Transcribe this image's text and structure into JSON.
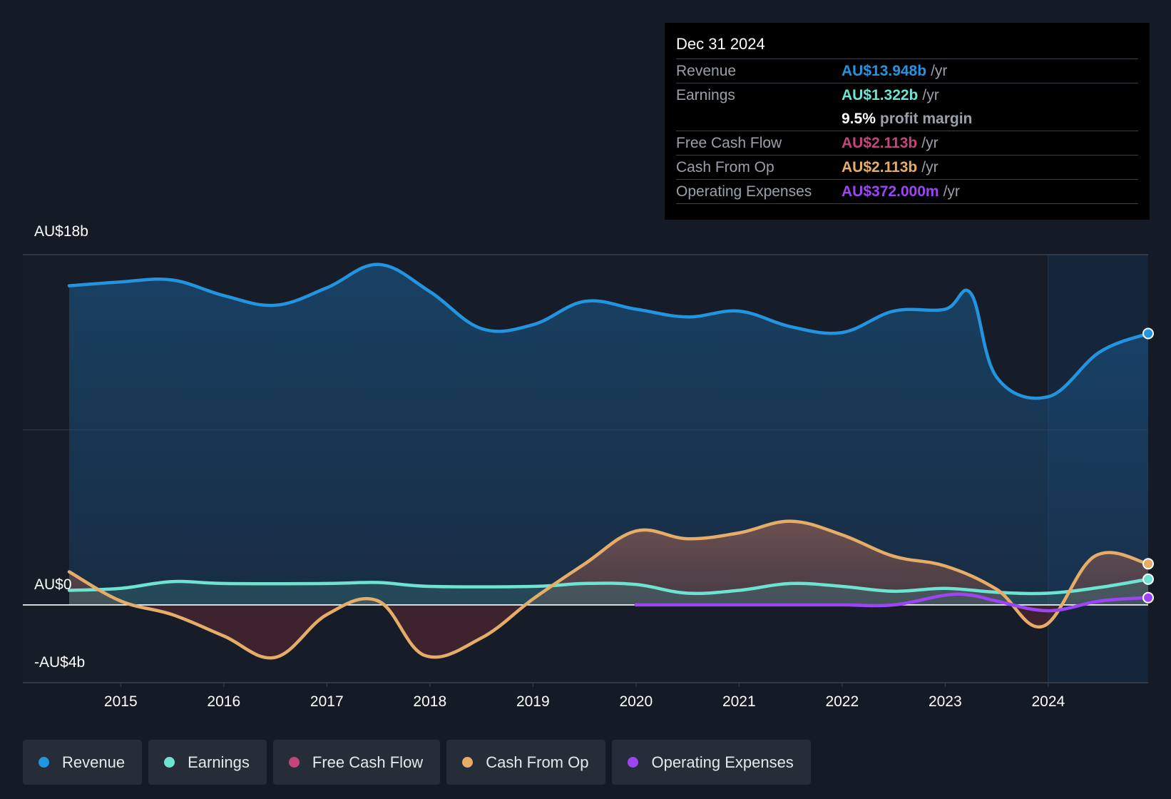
{
  "colors": {
    "background": "#151b26",
    "revenue": "#2394df",
    "earnings": "#6fe3d2",
    "free_cash_flow": "#c2467b",
    "cash_from_op": "#e6ad68",
    "operating_expenses": "#9d45f5"
  },
  "tooltip": {
    "date": "Dec 31 2024",
    "rows": [
      {
        "label": "Revenue",
        "value": "AU$13.948b",
        "unit": "/yr"
      },
      {
        "label": "Earnings",
        "value": "AU$1.322b",
        "unit": "/yr"
      },
      {
        "label": "",
        "value": "9.5%",
        "unit": "profit margin"
      },
      {
        "label": "Free Cash Flow",
        "value": "AU$2.113b",
        "unit": "/yr"
      },
      {
        "label": "Cash From Op",
        "value": "AU$2.113b",
        "unit": "/yr"
      },
      {
        "label": "Operating Expenses",
        "value": "AU$372.000m",
        "unit": "/yr"
      }
    ]
  },
  "legend": [
    {
      "label": "Revenue",
      "color": "#2394df"
    },
    {
      "label": "Earnings",
      "color": "#6fe3d2"
    },
    {
      "label": "Free Cash Flow",
      "color": "#c2467b"
    },
    {
      "label": "Cash From Op",
      "color": "#e6ad68"
    },
    {
      "label": "Operating Expenses",
      "color": "#9d45f5"
    }
  ],
  "chart_data": {
    "type": "area",
    "title": "",
    "y_labels": [
      "AU$18b",
      "AU$0",
      "-AU$4b"
    ],
    "ylim": [
      -4,
      18
    ],
    "xlim": [
      2014.05,
      2024.97
    ],
    "x_ticks": [
      2015,
      2016,
      2017,
      2018,
      2019,
      2020,
      2021,
      2022,
      2023,
      2024
    ],
    "x_tick_labels": [
      "2015",
      "2016",
      "2017",
      "2018",
      "2019",
      "2020",
      "2021",
      "2022",
      "2023",
      "2024"
    ],
    "highlight_from": 2024.0,
    "series": [
      {
        "name": "Revenue",
        "x": [
          2014.5,
          2015.0,
          2015.5,
          2016.0,
          2016.5,
          2017.0,
          2017.5,
          2018.0,
          2018.5,
          2019.0,
          2019.5,
          2020.0,
          2020.5,
          2021.0,
          2021.5,
          2022.0,
          2022.5,
          2023.0,
          2023.25,
          2023.5,
          2024.0,
          2024.5,
          2024.97
        ],
        "values": [
          16.4,
          16.6,
          16.7,
          15.9,
          15.4,
          16.3,
          17.5,
          16.1,
          14.2,
          14.4,
          15.6,
          15.2,
          14.8,
          15.1,
          14.3,
          14.0,
          15.1,
          15.2,
          16.0,
          11.7,
          10.7,
          13.0,
          13.948
        ]
      },
      {
        "name": "Earnings",
        "x": [
          2014.5,
          2015.0,
          2015.5,
          2016.0,
          2017.0,
          2017.5,
          2018.0,
          2019.0,
          2019.5,
          2020.0,
          2020.5,
          2021.0,
          2021.5,
          2022.0,
          2022.5,
          2023.0,
          2023.5,
          2024.0,
          2024.5,
          2024.97
        ],
        "values": [
          0.75,
          0.85,
          1.2,
          1.1,
          1.1,
          1.15,
          0.95,
          0.95,
          1.1,
          1.05,
          0.6,
          0.75,
          1.1,
          0.95,
          0.7,
          0.85,
          0.65,
          0.6,
          0.9,
          1.322
        ]
      },
      {
        "name": "Cash From Op",
        "x": [
          2014.5,
          2015.0,
          2015.5,
          2016.0,
          2016.5,
          2017.0,
          2017.5,
          2017.95,
          2018.5,
          2019.0,
          2019.5,
          2020.0,
          2020.5,
          2021.0,
          2021.5,
          2022.0,
          2022.5,
          2023.0,
          2023.5,
          2023.95,
          2024.45,
          2024.97
        ],
        "values": [
          1.7,
          0.2,
          -0.5,
          -1.6,
          -2.7,
          -0.5,
          0.2,
          -2.6,
          -1.7,
          0.3,
          2.1,
          3.8,
          3.4,
          3.7,
          4.3,
          3.6,
          2.5,
          2.0,
          0.8,
          -1.1,
          2.5,
          2.113
        ]
      },
      {
        "name": "Operating Expenses",
        "x": [
          2020.0,
          2020.5,
          2021.0,
          2021.5,
          2022.0,
          2022.5,
          2023.0,
          2023.25,
          2023.5,
          2024.0,
          2024.5,
          2024.97
        ],
        "values": [
          0.0,
          0.0,
          0.0,
          0.0,
          0.0,
          0.0,
          0.5,
          0.5,
          0.2,
          -0.3,
          0.2,
          0.372
        ]
      }
    ]
  }
}
